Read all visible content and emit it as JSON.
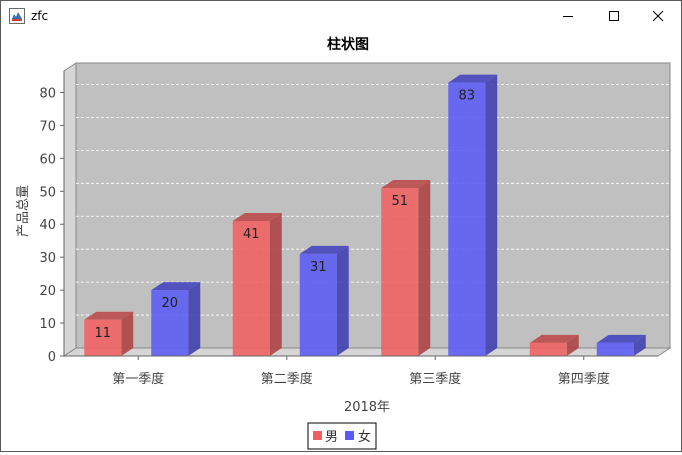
{
  "window": {
    "title": "zfc",
    "app_icon": "java-cup-icon",
    "controls": {
      "minimize_icon": "minimize-icon",
      "maximize_icon": "maximize-icon",
      "close_icon": "close-icon"
    }
  },
  "chart_data": {
    "type": "bar",
    "title": "柱状图",
    "xlabel": "2018年",
    "ylabel": "产品总量",
    "categories": [
      "第一季度",
      "第二季度",
      "第三季度",
      "第四季度"
    ],
    "series": [
      {
        "name": "男",
        "values": [
          11,
          41,
          51,
          4
        ],
        "color": "#f06060",
        "labels": [
          "11",
          "41",
          "51",
          ""
        ]
      },
      {
        "name": "女",
        "values": [
          20,
          31,
          83,
          4
        ],
        "color": "#5a5af5",
        "labels": [
          "20",
          "31",
          "83",
          ""
        ]
      }
    ],
    "ylim": [
      0,
      85
    ],
    "yticks": [
      0,
      10,
      20,
      30,
      40,
      50,
      60,
      70,
      80
    ],
    "grid": true,
    "three_d": true,
    "legend_position": "bottom-center",
    "plot_background": "#c0c0c0"
  }
}
